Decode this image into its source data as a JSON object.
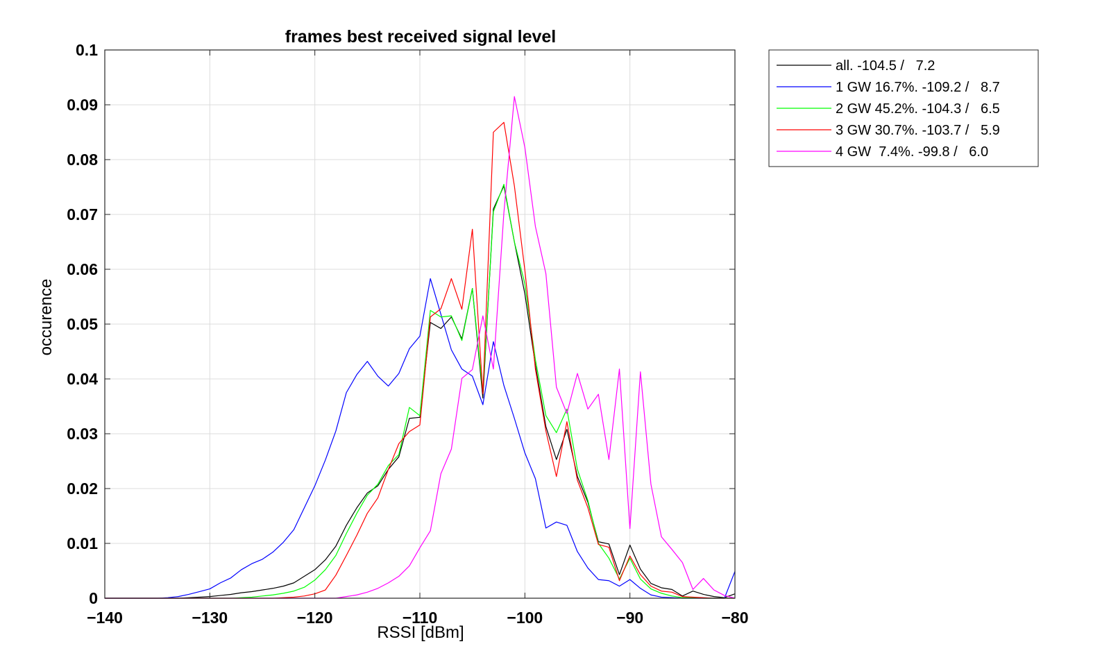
{
  "chart_data": {
    "type": "line",
    "title": "frames best received signal level",
    "xlabel": "RSSI [dBm]",
    "ylabel": "occurence",
    "xlim": [
      -140,
      -80
    ],
    "ylim": [
      0,
      0.1
    ],
    "xticks": [
      -140,
      -130,
      -120,
      -110,
      -100,
      -90,
      -80
    ],
    "xtick_labels": [
      "−140",
      "−130",
      "−120",
      "−110",
      "−100",
      "−90",
      "−80"
    ],
    "yticks": [
      0,
      0.01,
      0.02,
      0.03,
      0.04,
      0.05,
      0.06,
      0.07,
      0.08,
      0.09,
      0.1
    ],
    "ytick_labels": [
      "0",
      "0.01",
      "0.02",
      "0.03",
      "0.04",
      "0.05",
      "0.06",
      "0.07",
      "0.08",
      "0.09",
      "0.1"
    ],
    "grid": true,
    "legend_position": "outside-right-top",
    "x": [
      -140,
      -139,
      -138,
      -137,
      -136,
      -135,
      -134,
      -133,
      -132,
      -131,
      -130,
      -129,
      -128,
      -127,
      -126,
      -125,
      -124,
      -123,
      -122,
      -121,
      -120,
      -119,
      -118,
      -117,
      -116,
      -115,
      -114,
      -113,
      -112,
      -111,
      -110,
      -109,
      -108,
      -107,
      -106,
      -105,
      -104,
      -103,
      -102,
      -101,
      -100,
      -99,
      -98,
      -97,
      -96,
      -95,
      -94,
      -93,
      -92,
      -91,
      -90,
      -89,
      -88,
      -87,
      -86,
      -85,
      -84,
      -83,
      -82,
      -81,
      -80
    ],
    "series": [
      {
        "name": "all. -104.5 /   7.2",
        "color": "#000000",
        "values": [
          0,
          0,
          0,
          0,
          0,
          0,
          0,
          0,
          0.0001,
          0.0002,
          0.0003,
          0.0005,
          0.0007,
          0.001,
          0.0012,
          0.0015,
          0.0018,
          0.0022,
          0.0028,
          0.004,
          0.0052,
          0.007,
          0.0095,
          0.0133,
          0.0165,
          0.0192,
          0.0205,
          0.0235,
          0.0258,
          0.0328,
          0.033,
          0.0503,
          0.0492,
          0.0513,
          0.0473,
          0.0565,
          0.0365,
          0.071,
          0.0752,
          0.065,
          0.0555,
          0.0425,
          0.0313,
          0.0253,
          0.0308,
          0.0222,
          0.0175,
          0.0103,
          0.0099,
          0.0043,
          0.0097,
          0.0053,
          0.0027,
          0.0019,
          0.0016,
          0.0004,
          0.0013,
          0.0007,
          0.0003,
          0.0001,
          0.0008
        ]
      },
      {
        "name": "1 GW 16.7%. -109.2 /   8.7",
        "color": "#0000ff",
        "values": [
          0,
          0,
          0,
          0,
          0,
          0,
          0.0001,
          0.0003,
          0.0007,
          0.0012,
          0.0017,
          0.0028,
          0.0037,
          0.0052,
          0.0063,
          0.0071,
          0.0084,
          0.0102,
          0.0125,
          0.0165,
          0.0205,
          0.0252,
          0.0305,
          0.0375,
          0.0408,
          0.0432,
          0.0405,
          0.0387,
          0.041,
          0.0455,
          0.0478,
          0.0583,
          0.0518,
          0.0453,
          0.0418,
          0.0405,
          0.0353,
          0.0468,
          0.0388,
          0.0328,
          0.0265,
          0.0218,
          0.0128,
          0.0139,
          0.0133,
          0.0085,
          0.0055,
          0.0034,
          0.0032,
          0.0022,
          0.0034,
          0.0018,
          0.0006,
          0.0002,
          0.0001,
          0,
          0,
          0,
          0,
          0,
          0.0049
        ]
      },
      {
        "name": "2 GW 45.2%. -104.3 /   6.5",
        "color": "#00ff00",
        "values": [
          0,
          0,
          0,
          0,
          0,
          0,
          0,
          0,
          0,
          0,
          0,
          0,
          0,
          0.0001,
          0.0002,
          0.0004,
          0.0006,
          0.0009,
          0.0013,
          0.002,
          0.0033,
          0.0052,
          0.0078,
          0.0118,
          0.0155,
          0.0188,
          0.0208,
          0.0242,
          0.0262,
          0.0348,
          0.0333,
          0.0525,
          0.0513,
          0.0515,
          0.047,
          0.0565,
          0.0375,
          0.0705,
          0.0755,
          0.065,
          0.0573,
          0.0435,
          0.0333,
          0.0302,
          0.0345,
          0.0235,
          0.0178,
          0.01,
          0.0073,
          0.0035,
          0.0073,
          0.0035,
          0.0017,
          0.0009,
          0.0004,
          0.0001,
          0.0001,
          0,
          0,
          0,
          0
        ]
      },
      {
        "name": "3 GW 30.7%. -103.7 /   5.9",
        "color": "#ff0000",
        "values": [
          0,
          0,
          0,
          0,
          0,
          0,
          0,
          0,
          0,
          0,
          0,
          0,
          0,
          0,
          0,
          0,
          0,
          0.0001,
          0.0002,
          0.0004,
          0.0008,
          0.0015,
          0.0042,
          0.0078,
          0.0115,
          0.0155,
          0.0183,
          0.0235,
          0.0282,
          0.0304,
          0.0316,
          0.0513,
          0.0528,
          0.0583,
          0.0527,
          0.0673,
          0.0373,
          0.085,
          0.0868,
          0.0752,
          0.0598,
          0.0418,
          0.0305,
          0.0222,
          0.0322,
          0.0215,
          0.0165,
          0.0098,
          0.0093,
          0.0032,
          0.0077,
          0.0043,
          0.0022,
          0.0013,
          0.0011,
          0.0003,
          0.0002,
          0.0001,
          0,
          0,
          0
        ]
      },
      {
        "name": "4 GW  7.4%. -99.8 /   6.0",
        "color": "#ff00ff",
        "values": [
          0,
          0,
          0,
          0,
          0,
          0,
          0,
          0,
          0,
          0,
          0,
          0,
          0,
          0,
          0,
          0,
          0,
          0,
          0,
          0,
          0,
          0,
          0,
          0.0003,
          0.0006,
          0.0011,
          0.0018,
          0.0028,
          0.004,
          0.0059,
          0.0092,
          0.0123,
          0.0227,
          0.0272,
          0.0401,
          0.0417,
          0.0515,
          0.0418,
          0.0703,
          0.0915,
          0.0822,
          0.0678,
          0.0592,
          0.0385,
          0.0337,
          0.041,
          0.0345,
          0.0372,
          0.0253,
          0.0418,
          0.0127,
          0.0413,
          0.0208,
          0.0112,
          0.0089,
          0.0065,
          0.0016,
          0.0036,
          0.0015,
          0.0005,
          0
        ]
      }
    ]
  }
}
